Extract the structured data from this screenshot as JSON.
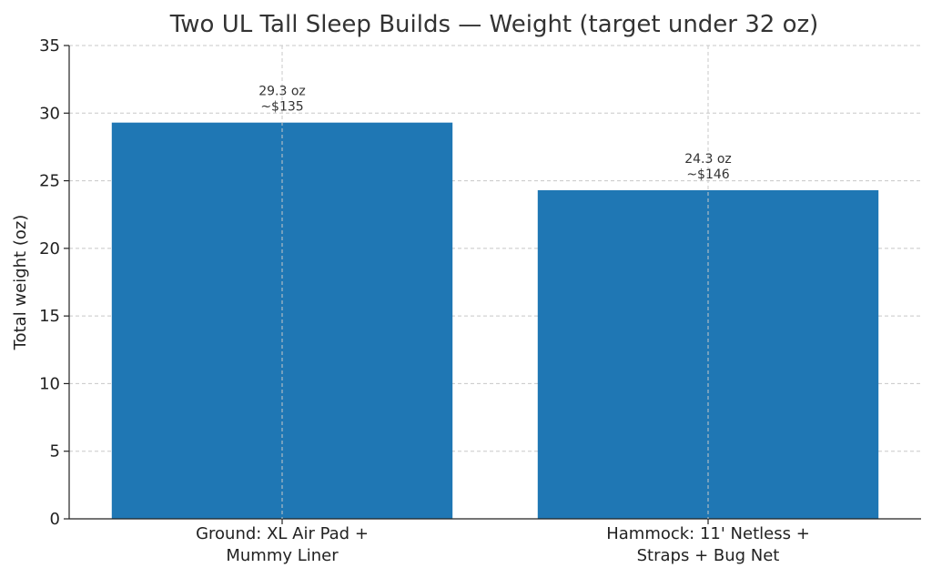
{
  "chart_data": {
    "type": "bar",
    "title": "Two UL Tall Sleep Builds — Weight (target under 32 oz)",
    "ylabel": "Total weight (oz)",
    "xlabel": "",
    "ylim": [
      0,
      35
    ],
    "yticks": [
      0,
      5,
      10,
      15,
      20,
      25,
      30,
      35
    ],
    "grid": true,
    "categories": [
      [
        "Ground: XL Air Pad +",
        "Mummy Liner"
      ],
      [
        "Hammock: 11' Netless +",
        "Straps + Bug Net"
      ]
    ],
    "values": [
      29.3,
      24.3
    ],
    "data_labels": [
      [
        "29.3 oz",
        "~$135"
      ],
      [
        "24.3 oz",
        "~$146"
      ]
    ],
    "bar_color": "#1f77b4"
  }
}
